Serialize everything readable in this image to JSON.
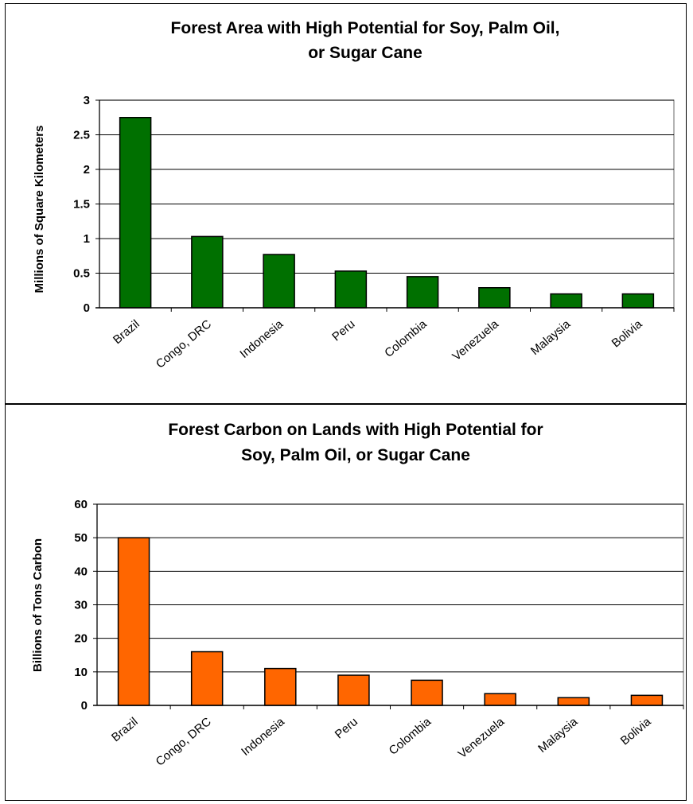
{
  "chart_data": [
    {
      "type": "bar",
      "title_lines": [
        "Forest Area with High Potential for Soy, Palm Oil,",
        "or Sugar Cane"
      ],
      "xlabel": "",
      "ylabel": "Millions of Square Kilometers",
      "categories": [
        "Brazil",
        "Congo, DRC",
        "Indonesia",
        "Peru",
        "Colombia",
        "Venezuela",
        "Malaysia",
        "Bolivia"
      ],
      "values": [
        2.75,
        1.03,
        0.77,
        0.53,
        0.45,
        0.29,
        0.2,
        0.2
      ],
      "ylim": [
        0,
        3
      ],
      "yticks": [
        0,
        0.5,
        1,
        1.5,
        2,
        2.5,
        3
      ],
      "ytick_labels": [
        "0",
        "0.5",
        "1",
        "1.5",
        "2",
        "2.5",
        "3"
      ],
      "grid": true,
      "bar_color": "#007000"
    },
    {
      "type": "bar",
      "title_lines": [
        "Forest Carbon on Lands with High Potential for",
        "Soy, Palm Oil, or Sugar Cane"
      ],
      "xlabel": "",
      "ylabel": "Billions of Tons Carbon",
      "categories": [
        "Brazil",
        "Congo, DRC",
        "Indonesia",
        "Peru",
        "Colombia",
        "Venezuela",
        "Malaysia",
        "Bolivia"
      ],
      "values": [
        50,
        16,
        11,
        9,
        7.5,
        3.5,
        2.3,
        3
      ],
      "ylim": [
        0,
        60
      ],
      "yticks": [
        0,
        10,
        20,
        30,
        40,
        50,
        60
      ],
      "ytick_labels": [
        "0",
        "10",
        "20",
        "30",
        "40",
        "50",
        "60"
      ],
      "grid": true,
      "bar_color": "#ff6600"
    }
  ]
}
